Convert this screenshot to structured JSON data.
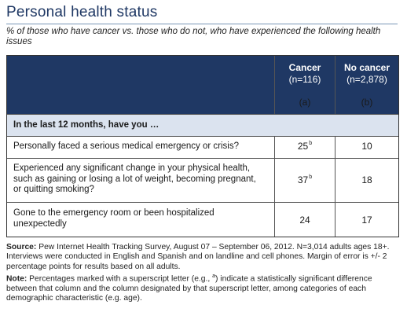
{
  "title": "Personal health status",
  "subtitle": "% of those who have cancer vs. those who do not, who have experienced the following health issues",
  "columns": [
    {
      "label": "Cancer",
      "n": "(n=116)",
      "letter": "(a)"
    },
    {
      "label": "No cancer",
      "n": "(n=2,878)",
      "letter": "(b)"
    }
  ],
  "section_label": "In the last 12 months, have you …",
  "rows": [
    {
      "label": "Personally faced a serious medical emergency or crisis?",
      "cancer": "25",
      "cancer_sup": "b",
      "no_cancer": "10"
    },
    {
      "label": "Experienced any significant change in your physical health, such as gaining or losing a lot of weight, becoming pregnant, or quitting smoking?",
      "cancer": "37",
      "cancer_sup": "b",
      "no_cancer": "18"
    },
    {
      "label": "Gone to the emergency room or been hospitalized unexpectedly",
      "cancer": "24",
      "cancer_sup": "",
      "no_cancer": "17"
    }
  ],
  "source_prefix": "Source:",
  "source_text": " Pew Internet Health Tracking Survey, August 07 – September 06, 2012. N=3,014 adults ages 18+. Interviews were conducted in English and Spanish and on landline and cell phones. Margin of error is +/- 2 percentage points for results based on all adults.",
  "note_prefix": "Note:",
  "note_text_1": " Percentages marked with a superscript letter (e.g., ",
  "note_sup": "a",
  "note_text_2": ") indicate a statistically significant difference between that column and the column designated by that superscript letter, among categories of each demographic characteristic (e.g. age)."
}
